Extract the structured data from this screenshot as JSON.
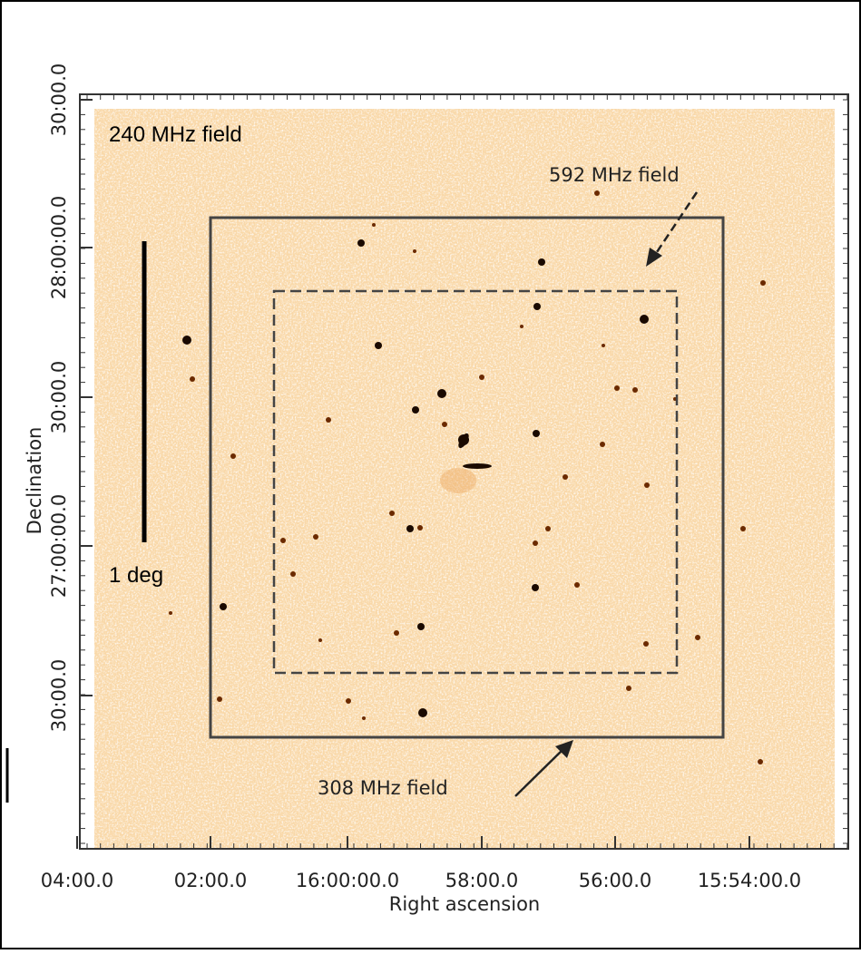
{
  "annotations": {
    "field_240": "240 MHz field",
    "field_592": "592 MHz field",
    "field_308": "308 MHz field",
    "scale_bar": "1 deg"
  },
  "x_axis": {
    "label": "Right ascension",
    "ticks": [
      "04:00.0",
      "02:00.0",
      "16:00:00.0",
      "58:00.0",
      "56:00.0",
      "15:54:00.0"
    ]
  },
  "y_axis": {
    "label": "Declination",
    "ticks": [
      "30:00.0",
      "28:00:00.0",
      "30:00.0",
      "27:00:00.0",
      "30:00.0"
    ]
  }
}
